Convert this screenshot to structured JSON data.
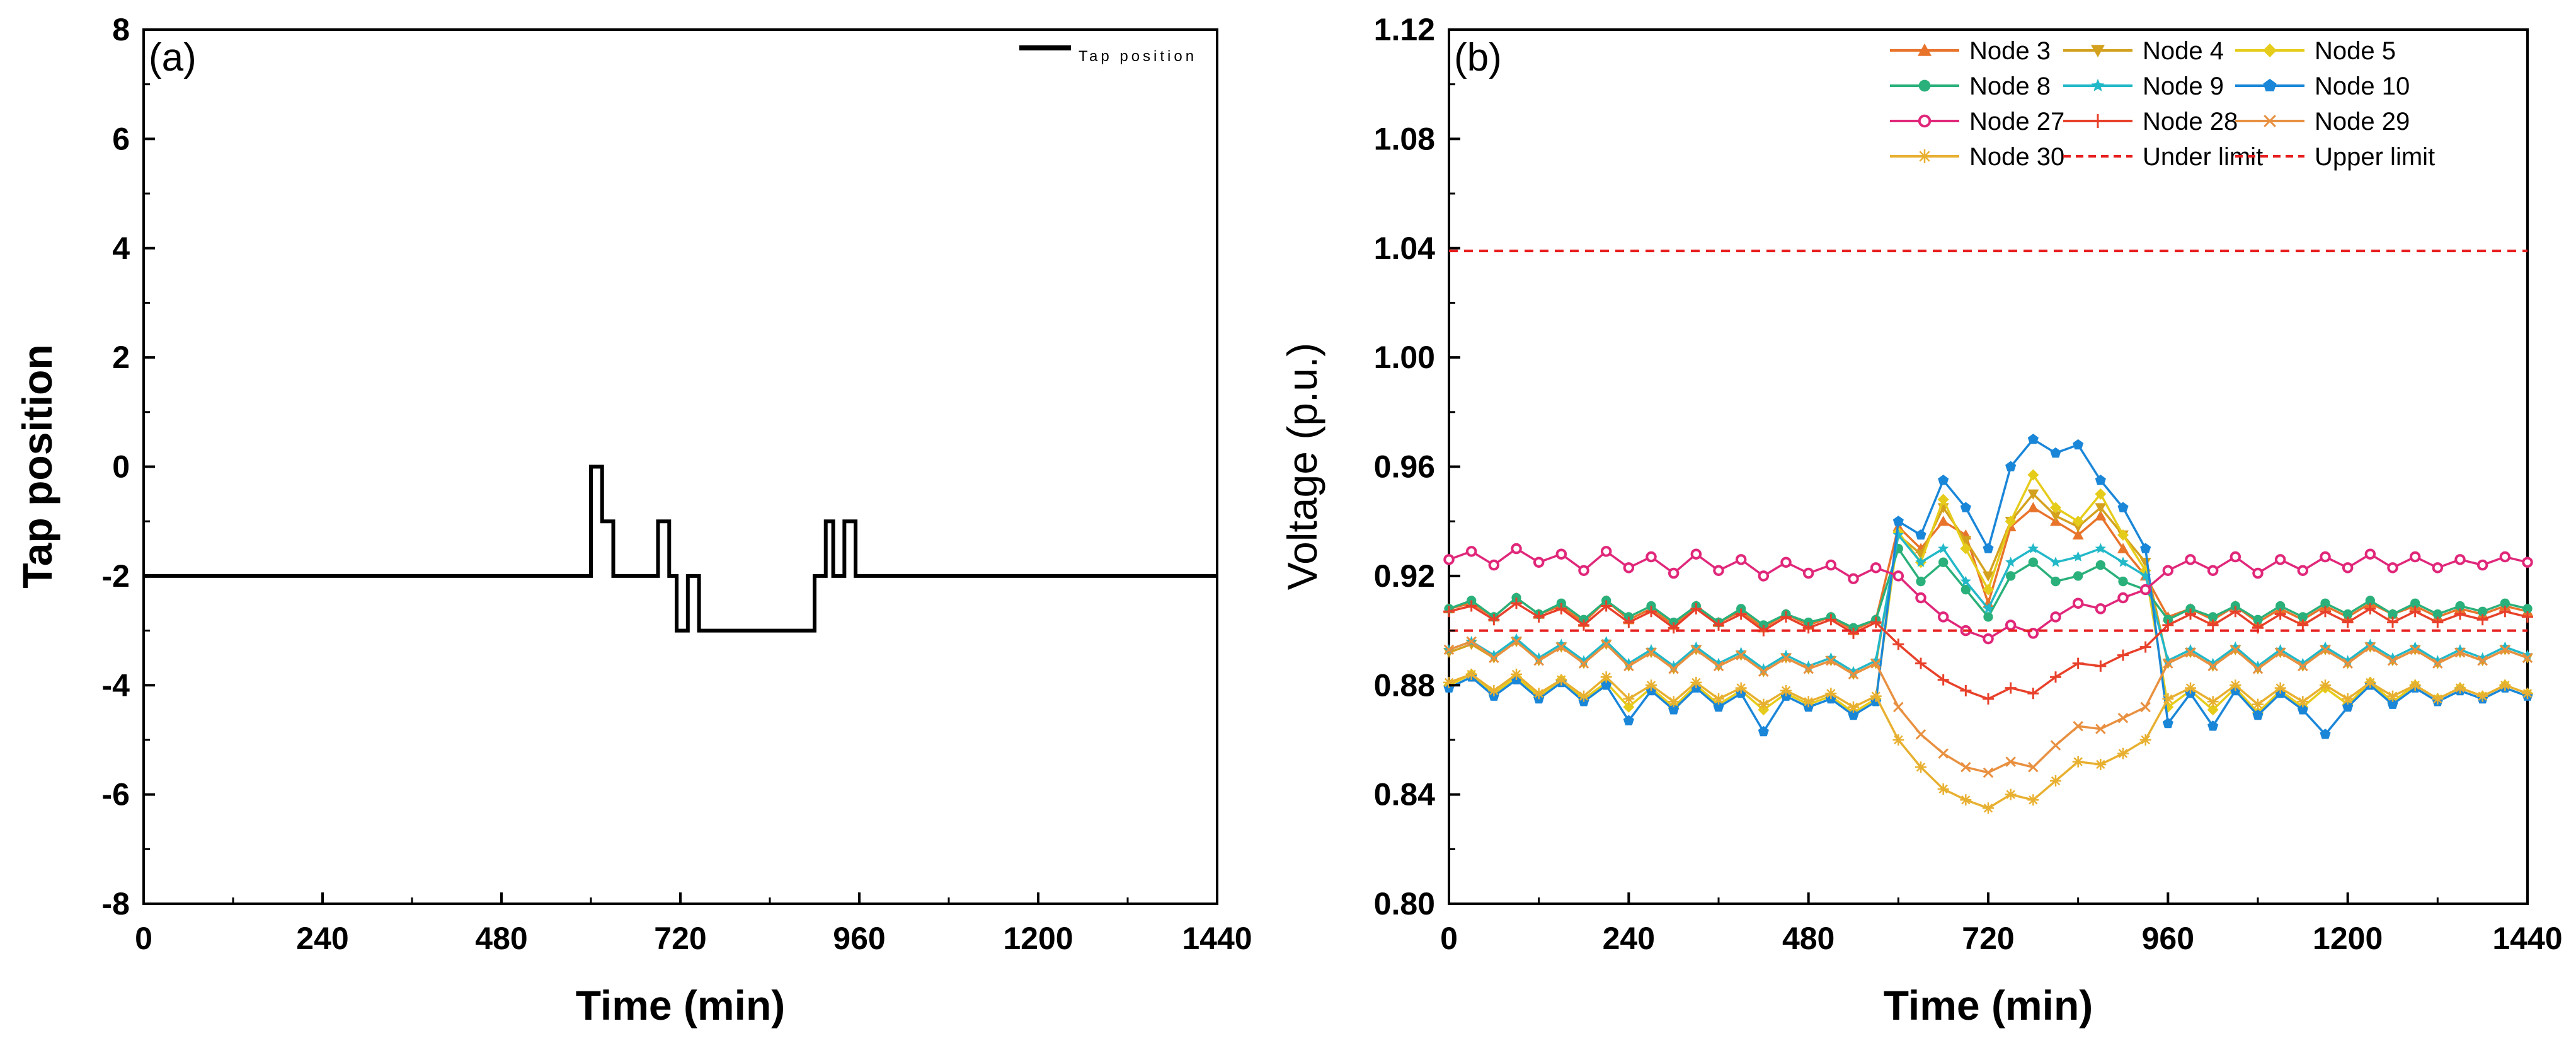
{
  "chart_data": [
    {
      "panel_label": "(a)",
      "type": "line",
      "title": "",
      "xlabel": "Time (min)",
      "ylabel": "Tap position",
      "xlim": [
        0,
        1440
      ],
      "ylim": [
        -8,
        8
      ],
      "xticks": [
        0,
        240,
        480,
        720,
        960,
        1200,
        1440
      ],
      "yticks": [
        -8,
        -6,
        -4,
        -2,
        0,
        2,
        4,
        6,
        8
      ],
      "legend": {
        "position": "top-right",
        "entries": [
          "Tap position"
        ]
      },
      "series": [
        {
          "name": "Tap position",
          "color": "#000000",
          "step": true,
          "x": [
            0,
            600,
            615,
            630,
            645,
            690,
            705,
            715,
            730,
            745,
            900,
            915,
            925,
            940,
            955,
            1440
          ],
          "y": [
            -2,
            0,
            -1,
            -2,
            -2,
            -1,
            -2,
            -3,
            -2,
            -3,
            -2,
            -1,
            -2,
            -1,
            -2,
            -2
          ]
        }
      ]
    },
    {
      "panel_label": "(b)",
      "type": "line",
      "title": "",
      "xlabel": "Time (min)",
      "ylabel": "Voltage (p.u.)",
      "xlim": [
        0,
        1440
      ],
      "ylim": [
        0.8,
        1.12
      ],
      "xticks": [
        0,
        240,
        480,
        720,
        960,
        1200,
        1440
      ],
      "yticks": [
        0.8,
        0.84,
        0.88,
        0.92,
        0.96,
        1.0,
        1.04,
        1.08,
        1.12
      ],
      "legend": {
        "position": "top-right",
        "columns": 3
      },
      "x": [
        0,
        30,
        60,
        90,
        120,
        150,
        180,
        210,
        240,
        270,
        300,
        330,
        360,
        390,
        420,
        450,
        480,
        510,
        540,
        570,
        600,
        630,
        660,
        690,
        720,
        750,
        780,
        810,
        840,
        870,
        900,
        930,
        960,
        990,
        1020,
        1050,
        1080,
        1110,
        1140,
        1170,
        1200,
        1230,
        1260,
        1290,
        1320,
        1350,
        1380,
        1410,
        1440
      ],
      "series": [
        {
          "name": "Node 3",
          "color": "#e8732a",
          "marker": "triangle-up",
          "values": [
            0.908,
            0.91,
            0.905,
            0.912,
            0.906,
            0.909,
            0.903,
            0.911,
            0.904,
            0.908,
            0.902,
            0.909,
            0.903,
            0.907,
            0.901,
            0.906,
            0.902,
            0.905,
            0.9,
            0.904,
            0.938,
            0.93,
            0.94,
            0.935,
            0.91,
            0.938,
            0.945,
            0.94,
            0.935,
            0.942,
            0.93,
            0.92,
            0.905,
            0.908,
            0.904,
            0.909,
            0.903,
            0.908,
            0.904,
            0.909,
            0.905,
            0.91,
            0.906,
            0.909,
            0.905,
            0.908,
            0.906,
            0.909,
            0.907
          ]
        },
        {
          "name": "Node 4",
          "color": "#d4a11e",
          "marker": "triangle-down",
          "values": [
            0.892,
            0.895,
            0.89,
            0.896,
            0.889,
            0.894,
            0.888,
            0.895,
            0.887,
            0.892,
            0.886,
            0.893,
            0.887,
            0.891,
            0.885,
            0.89,
            0.886,
            0.889,
            0.884,
            0.888,
            0.935,
            0.928,
            0.945,
            0.933,
            0.92,
            0.94,
            0.95,
            0.942,
            0.938,
            0.945,
            0.935,
            0.925,
            0.888,
            0.892,
            0.887,
            0.893,
            0.886,
            0.892,
            0.887,
            0.893,
            0.888,
            0.894,
            0.889,
            0.893,
            0.888,
            0.892,
            0.889,
            0.893,
            0.89
          ]
        },
        {
          "name": "Node 5",
          "color": "#e6cc1a",
          "marker": "diamond",
          "values": [
            0.88,
            0.884,
            0.877,
            0.883,
            0.876,
            0.882,
            0.875,
            0.881,
            0.872,
            0.879,
            0.872,
            0.88,
            0.873,
            0.878,
            0.871,
            0.877,
            0.873,
            0.876,
            0.87,
            0.875,
            0.936,
            0.925,
            0.948,
            0.93,
            0.915,
            0.94,
            0.957,
            0.945,
            0.94,
            0.95,
            0.935,
            0.922,
            0.872,
            0.878,
            0.871,
            0.879,
            0.87,
            0.878,
            0.872,
            0.879,
            0.873,
            0.881,
            0.874,
            0.88,
            0.875,
            0.879,
            0.876,
            0.88,
            0.877
          ]
        },
        {
          "name": "Node 8",
          "color": "#2ab07a",
          "marker": "circle",
          "values": [
            0.908,
            0.911,
            0.905,
            0.912,
            0.906,
            0.91,
            0.904,
            0.911,
            0.905,
            0.909,
            0.903,
            0.909,
            0.903,
            0.908,
            0.902,
            0.906,
            0.903,
            0.905,
            0.901,
            0.904,
            0.93,
            0.918,
            0.925,
            0.915,
            0.905,
            0.92,
            0.925,
            0.918,
            0.92,
            0.924,
            0.918,
            0.915,
            0.904,
            0.908,
            0.905,
            0.909,
            0.904,
            0.909,
            0.905,
            0.91,
            0.906,
            0.911,
            0.906,
            0.91,
            0.906,
            0.909,
            0.907,
            0.91,
            0.908
          ]
        },
        {
          "name": "Node 9",
          "color": "#22b8c8",
          "marker": "star",
          "values": [
            0.893,
            0.896,
            0.891,
            0.897,
            0.89,
            0.895,
            0.889,
            0.896,
            0.888,
            0.893,
            0.887,
            0.894,
            0.888,
            0.892,
            0.886,
            0.891,
            0.887,
            0.89,
            0.885,
            0.889,
            0.935,
            0.925,
            0.93,
            0.918,
            0.908,
            0.925,
            0.93,
            0.925,
            0.927,
            0.93,
            0.925,
            0.92,
            0.889,
            0.893,
            0.888,
            0.894,
            0.887,
            0.893,
            0.888,
            0.894,
            0.889,
            0.895,
            0.89,
            0.894,
            0.889,
            0.893,
            0.89,
            0.894,
            0.891
          ]
        },
        {
          "name": "Node 10",
          "color": "#1a86d8",
          "marker": "pentagon",
          "values": [
            0.879,
            0.883,
            0.876,
            0.882,
            0.875,
            0.881,
            0.874,
            0.88,
            0.867,
            0.878,
            0.871,
            0.879,
            0.872,
            0.877,
            0.863,
            0.876,
            0.872,
            0.875,
            0.869,
            0.874,
            0.94,
            0.935,
            0.955,
            0.945,
            0.93,
            0.96,
            0.97,
            0.965,
            0.968,
            0.955,
            0.945,
            0.93,
            0.866,
            0.877,
            0.865,
            0.878,
            0.869,
            0.877,
            0.871,
            0.862,
            0.872,
            0.88,
            0.873,
            0.879,
            0.874,
            0.878,
            0.875,
            0.879,
            0.876
          ]
        },
        {
          "name": "Node 27",
          "color": "#e0277a",
          "marker": "circle-open",
          "values": [
            0.926,
            0.929,
            0.924,
            0.93,
            0.925,
            0.928,
            0.922,
            0.929,
            0.923,
            0.927,
            0.921,
            0.928,
            0.922,
            0.926,
            0.92,
            0.925,
            0.921,
            0.924,
            0.919,
            0.923,
            0.92,
            0.912,
            0.905,
            0.9,
            0.897,
            0.902,
            0.899,
            0.905,
            0.91,
            0.908,
            0.912,
            0.915,
            0.922,
            0.926,
            0.922,
            0.927,
            0.921,
            0.926,
            0.922,
            0.927,
            0.923,
            0.928,
            0.923,
            0.927,
            0.923,
            0.926,
            0.924,
            0.927,
            0.925
          ]
        },
        {
          "name": "Node 28",
          "color": "#e8402a",
          "marker": "plus",
          "values": [
            0.907,
            0.909,
            0.904,
            0.91,
            0.905,
            0.908,
            0.902,
            0.909,
            0.903,
            0.907,
            0.901,
            0.908,
            0.902,
            0.906,
            0.9,
            0.905,
            0.901,
            0.904,
            0.899,
            0.903,
            0.895,
            0.888,
            0.882,
            0.878,
            0.875,
            0.879,
            0.877,
            0.883,
            0.888,
            0.887,
            0.891,
            0.894,
            0.902,
            0.906,
            0.902,
            0.907,
            0.901,
            0.906,
            0.902,
            0.907,
            0.903,
            0.908,
            0.903,
            0.907,
            0.903,
            0.906,
            0.904,
            0.907,
            0.905
          ]
        },
        {
          "name": "Node 29",
          "color": "#e89040",
          "marker": "cross",
          "values": [
            0.893,
            0.896,
            0.89,
            0.896,
            0.889,
            0.894,
            0.888,
            0.895,
            0.887,
            0.892,
            0.886,
            0.893,
            0.887,
            0.891,
            0.885,
            0.89,
            0.886,
            0.889,
            0.884,
            0.888,
            0.872,
            0.862,
            0.855,
            0.85,
            0.848,
            0.852,
            0.85,
            0.858,
            0.865,
            0.864,
            0.868,
            0.872,
            0.888,
            0.892,
            0.887,
            0.893,
            0.886,
            0.892,
            0.887,
            0.893,
            0.888,
            0.894,
            0.889,
            0.893,
            0.888,
            0.892,
            0.889,
            0.893,
            0.89
          ]
        },
        {
          "name": "Node 30",
          "color": "#e8b030",
          "marker": "asterisk",
          "values": [
            0.881,
            0.884,
            0.878,
            0.884,
            0.877,
            0.882,
            0.876,
            0.883,
            0.875,
            0.88,
            0.874,
            0.881,
            0.875,
            0.879,
            0.873,
            0.878,
            0.874,
            0.877,
            0.872,
            0.876,
            0.86,
            0.85,
            0.842,
            0.838,
            0.835,
            0.84,
            0.838,
            0.845,
            0.852,
            0.851,
            0.855,
            0.86,
            0.875,
            0.879,
            0.874,
            0.88,
            0.873,
            0.879,
            0.874,
            0.88,
            0.875,
            0.881,
            0.876,
            0.88,
            0.875,
            0.879,
            0.876,
            0.88,
            0.877
          ]
        },
        {
          "name": "Under limit",
          "color": "#e81e1e",
          "dashed": true,
          "constant": 0.9
        },
        {
          "name": "Upper limit",
          "color": "#e81e1e",
          "dashed": true,
          "constant": 1.039
        }
      ]
    }
  ]
}
